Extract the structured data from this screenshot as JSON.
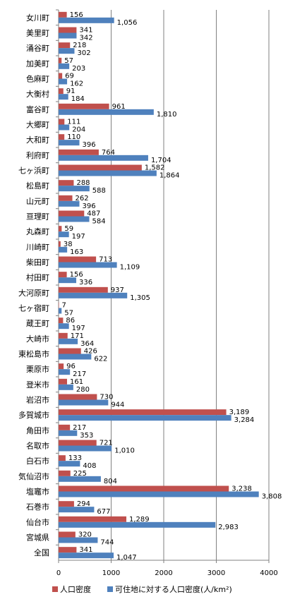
{
  "chart_data": {
    "type": "bar",
    "orientation": "horizontal",
    "categories": [
      "女川町",
      "美里町",
      "涌谷町",
      "加美町",
      "色麻町",
      "大衡村",
      "富谷町",
      "大郷町",
      "大和町",
      "利府町",
      "七ヶ浜町",
      "松島町",
      "山元町",
      "亘理町",
      "丸森町",
      "川崎町",
      "柴田町",
      "村田町",
      "大河原町",
      "七ヶ宿町",
      "蔵王町",
      "大崎市",
      "東松島市",
      "栗原市",
      "登米市",
      "岩沼市",
      "多賀城市",
      "角田市",
      "名取市",
      "白石市",
      "気仙沼市",
      "塩竈市",
      "石巻市",
      "仙台市",
      "宮城県",
      "全国"
    ],
    "series": [
      {
        "name": "人口密度",
        "color": "#c0504d",
        "values": [
          156,
          341,
          218,
          57,
          69,
          91,
          961,
          111,
          110,
          764,
          1582,
          288,
          262,
          487,
          59,
          38,
          713,
          156,
          937,
          7,
          86,
          171,
          426,
          96,
          161,
          730,
          3189,
          217,
          721,
          133,
          225,
          3238,
          294,
          1289,
          320,
          341
        ],
        "labels": [
          "156",
          "341",
          "218",
          "57",
          "69",
          "91",
          "961",
          "111",
          "110",
          "764",
          "1,582",
          "288",
          "262",
          "487",
          "59",
          "38",
          "713",
          "156",
          "937",
          "7",
          "86",
          "171",
          "426",
          "96",
          "161",
          "730",
          "3,189",
          "217",
          "721",
          "133",
          "225",
          "3,238",
          "294",
          "1,289",
          "320",
          "341"
        ]
      },
      {
        "name": "可住地に対する人口密度(人/km²)",
        "color": "#4f81bd",
        "values": [
          1056,
          342,
          302,
          203,
          162,
          184,
          1810,
          204,
          396,
          1704,
          1864,
          588,
          396,
          584,
          197,
          163,
          1109,
          336,
          1305,
          57,
          197,
          364,
          622,
          217,
          280,
          944,
          3284,
          353,
          1010,
          408,
          804,
          3808,
          677,
          2983,
          744,
          1047
        ],
        "labels": [
          "1,056",
          "342",
          "302",
          "203",
          "162",
          "184",
          "1,810",
          "204",
          "396",
          "1,704",
          "1,864",
          "588",
          "396",
          "584",
          "197",
          "163",
          "1,109",
          "336",
          "1,305",
          "57",
          "197",
          "364",
          "622",
          "217",
          "280",
          "944",
          "3,284",
          "353",
          "1,010",
          "408",
          "804",
          "3,808",
          "677",
          "2,983",
          "744",
          "1,047"
        ]
      }
    ],
    "xlim": [
      0,
      4000
    ],
    "xticks": [
      "0",
      "1000",
      "2000",
      "3000",
      "4000"
    ],
    "grid": true,
    "legend_position": "bottom"
  }
}
